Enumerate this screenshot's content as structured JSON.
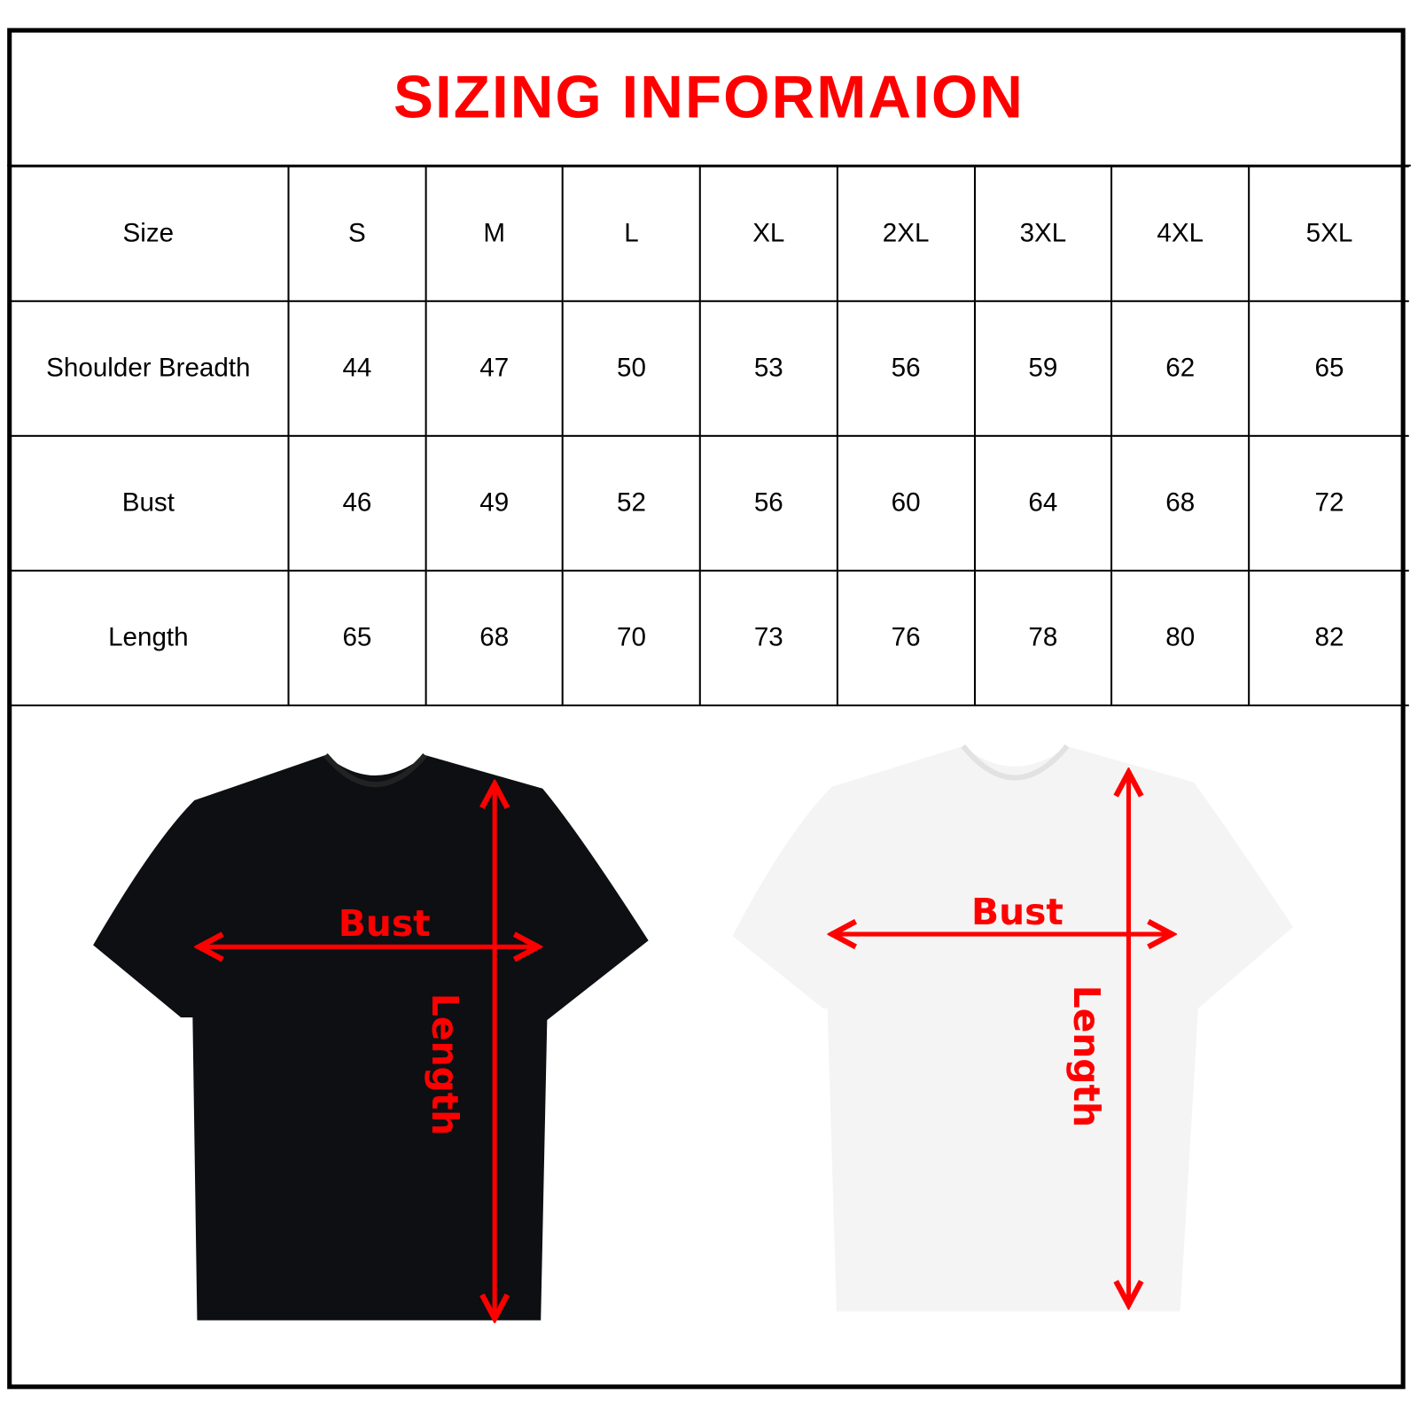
{
  "title": "SIZING INFORMAION",
  "table": {
    "header": [
      "Size",
      "S",
      "M",
      "L",
      "XL",
      "2XL",
      "3XL",
      "4XL",
      "5XL"
    ],
    "rows": [
      [
        "Shoulder Breadth",
        "44",
        "47",
        "50",
        "53",
        "56",
        "59",
        "62",
        "65"
      ],
      [
        "Bust",
        "46",
        "49",
        "52",
        "56",
        "60",
        "64",
        "68",
        "72"
      ],
      [
        "Length",
        "65",
        "68",
        "70",
        "73",
        "76",
        "78",
        "80",
        "82"
      ]
    ]
  },
  "diagrams": {
    "black_shirt": {
      "color": "#0d0f12",
      "bust_label": "Bust",
      "length_label": "Length"
    },
    "white_shirt": {
      "color": "#f4f4f4",
      "bust_label": "Bust",
      "length_label": "Length"
    }
  },
  "colors": {
    "accent": "#ff0000",
    "border": "#000000"
  }
}
